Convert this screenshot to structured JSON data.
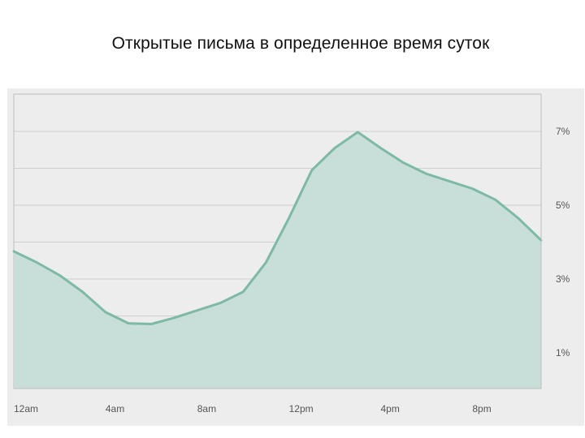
{
  "title": "Открытые письма в определенное время суток",
  "chart_data": {
    "type": "area",
    "title": "Открытые письма в определенное время суток",
    "xlabel": "",
    "ylabel": "",
    "x": [
      "12am",
      "1am",
      "2am",
      "3am",
      "4am",
      "5am",
      "6am",
      "7am",
      "8am",
      "9am",
      "10am",
      "11am",
      "12pm",
      "1pm",
      "2pm",
      "3pm",
      "4pm",
      "5pm",
      "6pm",
      "7pm",
      "8pm",
      "9pm",
      "10pm",
      "11pm"
    ],
    "x_tick_labels": [
      "12am",
      "4am",
      "8am",
      "12pm",
      "4pm",
      "8pm"
    ],
    "y_tick_labels": [
      "1%",
      "3%",
      "5%",
      "7%"
    ],
    "y_tick_values": [
      1,
      3,
      5,
      7
    ],
    "ylim": [
      0,
      8
    ],
    "gridlines_y": [
      1,
      2,
      3,
      4,
      5,
      6,
      7
    ],
    "series": [
      {
        "values": [
          3.75,
          3.45,
          3.1,
          2.65,
          2.1,
          1.8,
          1.78,
          1.95,
          2.15,
          2.35,
          2.65,
          3.45,
          4.65,
          5.95,
          6.55,
          6.98,
          6.55,
          6.15,
          5.85,
          5.65,
          5.45,
          5.15,
          4.65,
          4.05
        ]
      }
    ],
    "grid": true,
    "y_axis_position": "right",
    "colors": {
      "line": "#7dbaa6",
      "fill": "#c8dfd9",
      "panel": "#ededed",
      "plot_bg": "#ededed",
      "grid": "#cfcfcf",
      "axis": "#bdbdbd"
    }
  }
}
